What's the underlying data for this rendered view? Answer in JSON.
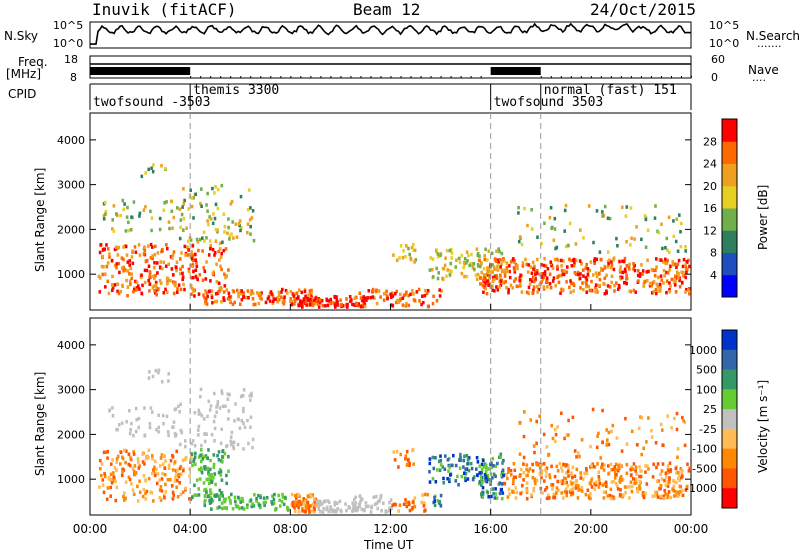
{
  "header": {
    "station": "Inuvik (fitACF)",
    "beam": "Beam 12",
    "date": "24/Oct/2015"
  },
  "panels": {
    "nsky": {
      "label": "N.Sky",
      "ticks": [
        "10^5",
        "10^0"
      ],
      "right_ticks": [
        "10^5",
        "10^0"
      ],
      "right_label": "N.Search",
      "right_dots": "......."
    },
    "freq": {
      "label_line1": "Freq.",
      "label_line2": "[MHz]",
      "ticks": [
        "18",
        "8"
      ],
      "right_ticks": [
        "60",
        "0"
      ],
      "right_label": "Nave",
      "right_dots": "...."
    },
    "cpid": {
      "label": "CPID"
    }
  },
  "colors": {
    "power_scale": [
      "#0000ff",
      "#1f4fbf",
      "#2e7f5e",
      "#6fb04c",
      "#e6d021",
      "#f0a020",
      "#ff6a00",
      "#ff0000"
    ],
    "velocity_scale": [
      "#0033cc",
      "#3366aa",
      "#339966",
      "#66cc33",
      "#c0c0c0",
      "#ffbb55",
      "#ff8800",
      "#ff5500",
      "#ff0000"
    ],
    "scatter_gray": "#c0c0c0"
  },
  "chart_data": [
    {
      "type": "line",
      "title": "N.Sky / N.Search",
      "xlim": [
        "00:00",
        "24:00"
      ],
      "left_scale": "log 10^0 to 10^5",
      "description_values": "noise level near top of range, elevated after 18:00"
    },
    {
      "type": "line",
      "title": "Freq. [MHz] / Nave",
      "ylim_freq": [
        8,
        18
      ],
      "ylim_nave": [
        0,
        60
      ],
      "dense_sampling_periods": [
        [
          "00:00",
          "04:00"
        ],
        [
          "16:00",
          "18:00"
        ]
      ]
    },
    {
      "type": "table",
      "title": "CPID",
      "segments": [
        {
          "label": "twofsound -3503",
          "start": "00:00",
          "end": "04:00"
        },
        {
          "label": "themis 3300",
          "start": "04:00",
          "end": "16:00"
        },
        {
          "label": "twofsound 3503",
          "start": "16:00",
          "end": "18:00"
        },
        {
          "label": "normal (fast) 151",
          "start": "18:00",
          "end": "24:00"
        }
      ]
    },
    {
      "type": "heatmap",
      "title": "Power",
      "ylabel": "Slant Range [km]",
      "colorbar_label": "Power [dB]",
      "xlim": [
        0,
        24
      ],
      "ylim": [
        200,
        4600
      ],
      "yticks": [
        1000,
        2000,
        3000,
        4000
      ],
      "colorbar_ticks": [
        4,
        8,
        12,
        16,
        20,
        24,
        28
      ],
      "colorbar_range": [
        0,
        32
      ]
    },
    {
      "type": "heatmap",
      "title": "Velocity",
      "ylabel": "Slant Range [km]",
      "colorbar_label": "Velocity [m s⁻¹]",
      "xlim": [
        0,
        24
      ],
      "ylim": [
        200,
        4600
      ],
      "yticks": [
        1000,
        2000,
        3000,
        4000
      ],
      "colorbar_ticks": [
        "1000",
        "500",
        "100",
        "25",
        "-25",
        "-100",
        "-500",
        "-1000"
      ]
    }
  ],
  "xaxis": {
    "label": "Time UT",
    "ticks": [
      "00:00",
      "04:00",
      "08:00",
      "12:00",
      "16:00",
      "20:00",
      "00:00"
    ],
    "tick_hours": [
      0,
      4,
      8,
      12,
      16,
      20,
      24
    ],
    "dashed_lines_hours": [
      4,
      16,
      18
    ]
  }
}
